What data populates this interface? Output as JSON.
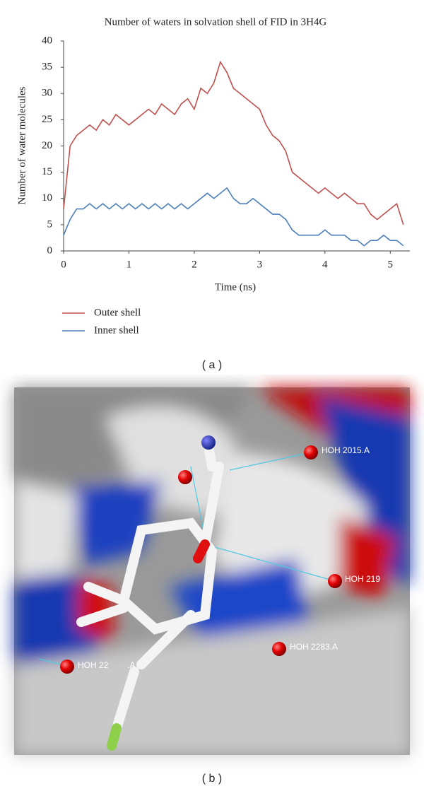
{
  "chart_data": {
    "type": "line",
    "title": "Number of waters in solvation shell of  FID in 3H4G",
    "x_label": "Time (ns)",
    "y_label": "Number of water molecules",
    "x": [
      0,
      0.1,
      0.2,
      0.3,
      0.4,
      0.5,
      0.6,
      0.7,
      0.8,
      0.9,
      1,
      1.1,
      1.2,
      1.3,
      1.4,
      1.5,
      1.6,
      1.7,
      1.8,
      1.9,
      2,
      2.1,
      2.2,
      2.3,
      2.4,
      2.5,
      2.6,
      2.7,
      2.8,
      2.9,
      3,
      3.1,
      3.2,
      3.3,
      3.4,
      3.5,
      3.6,
      3.7,
      3.8,
      3.9,
      4,
      4.1,
      4.2,
      4.3,
      4.4,
      4.5,
      4.6,
      4.7,
      4.8,
      4.9,
      5,
      5.1,
      5.2
    ],
    "series": [
      {
        "name": "Outer shell",
        "color": "#c0504d",
        "values": [
          8,
          20,
          22,
          23,
          24,
          23,
          25,
          24,
          26,
          25,
          24,
          25,
          26,
          27,
          26,
          28,
          27,
          26,
          28,
          29,
          27,
          31,
          30,
          32,
          36,
          34,
          31,
          30,
          29,
          28,
          27,
          24,
          22,
          21,
          19,
          15,
          14,
          13,
          12,
          11,
          12,
          11,
          10,
          11,
          10,
          9,
          9,
          7,
          6,
          7,
          8,
          9,
          5
        ]
      },
      {
        "name": "Inner shell",
        "color": "#4a7ebb",
        "values": [
          3,
          6,
          8,
          8,
          9,
          8,
          9,
          8,
          9,
          8,
          9,
          8,
          9,
          8,
          9,
          8,
          9,
          8,
          9,
          8,
          9,
          10,
          11,
          10,
          11,
          12,
          10,
          9,
          9,
          10,
          9,
          8,
          7,
          7,
          6,
          4,
          3,
          3,
          3,
          3,
          4,
          3,
          3,
          3,
          2,
          2,
          1,
          2,
          2,
          3,
          2,
          2,
          1
        ]
      }
    ],
    "xlim": [
      0,
      5.3
    ],
    "ylim": [
      0,
      40
    ],
    "xticks": [
      0,
      1,
      2,
      3,
      4,
      5
    ],
    "yticks": [
      0,
      5,
      10,
      15,
      20,
      25,
      30,
      35,
      40
    ],
    "grid": false,
    "legend": "bottom-left"
  },
  "panel_labels": [
    "( a )",
    "( b )"
  ],
  "image_b": {
    "labels": [
      "HOH 2015.A",
      "HOH 219",
      "HOH 2283.A",
      "HOH 22",
      ".A"
    ]
  }
}
